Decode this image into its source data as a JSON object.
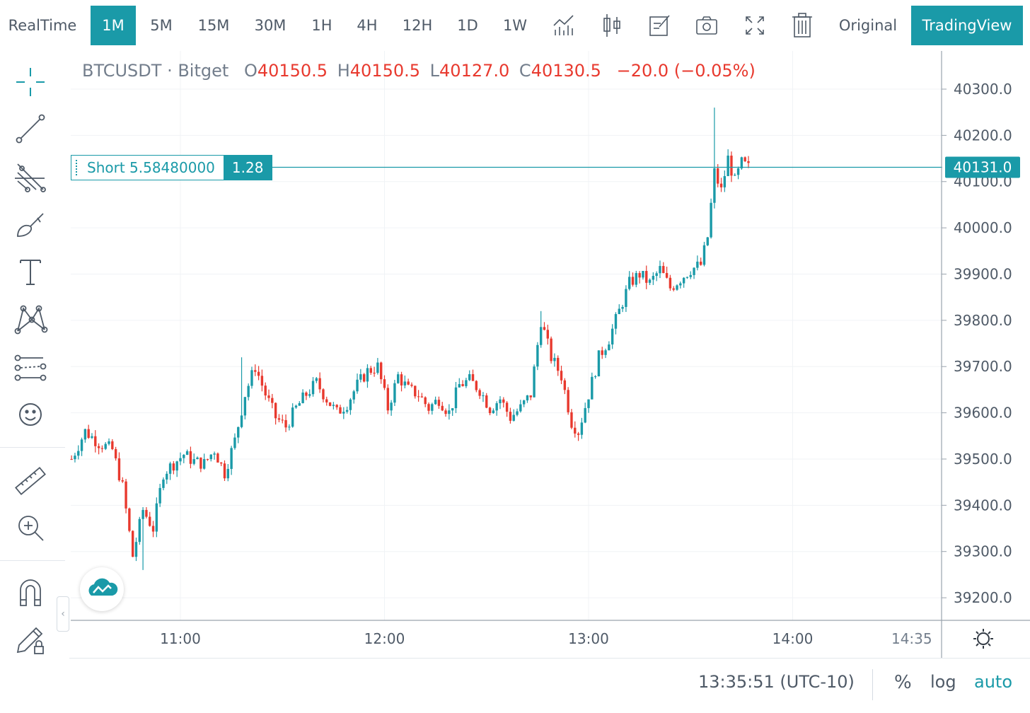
{
  "toolbar": {
    "intervals": [
      "RealTime",
      "1M",
      "5M",
      "15M",
      "30M",
      "1H",
      "4H",
      "12H",
      "1D",
      "1W"
    ],
    "active_interval": "1M",
    "original_label": "Original",
    "tradingview_label": "TradingView",
    "icons": [
      "indicators-icon",
      "candle-style-icon",
      "notes-icon",
      "snapshot-icon",
      "fullscreen-icon",
      "trash-icon"
    ]
  },
  "left_tools": [
    "crosshair-icon",
    "trend-line-icon",
    "fib-icon",
    "brush-icon",
    "text-icon",
    "pattern-icon",
    "prediction-icon",
    "emoji-icon",
    "ruler-icon",
    "zoom-in-icon",
    "magnet-icon",
    "lock-drawing-icon",
    "unlock-icon"
  ],
  "legend": {
    "symbol": "BTCUSDT",
    "separator": "·",
    "exchange": "Bitget",
    "o_label": "O",
    "o": "40150.5",
    "h_label": "H",
    "h": "40150.5",
    "l_label": "L",
    "l": "40127.0",
    "c_label": "C",
    "c": "40130.5",
    "change": "−20.0 (−0.05%)"
  },
  "order": {
    "label": "Short 5.58480000",
    "qty": "1.28",
    "price": 40131.0
  },
  "price_axis": {
    "labels": [
      "40300.0",
      "40200.0",
      "40100.0",
      "40000.0",
      "39900.0",
      "39800.0",
      "39700.0",
      "39600.0",
      "39500.0",
      "39400.0",
      "39300.0",
      "39200.0"
    ],
    "current": "40131.0"
  },
  "time_axis": {
    "labels": [
      "11:00",
      "12:00",
      "13:00",
      "14:00",
      "14:35"
    ]
  },
  "bottom": {
    "clock": "13:35:51 (UTC-10)",
    "percent": "%",
    "log": "log",
    "auto": "auto"
  },
  "colors": {
    "up": "#1a9aa8",
    "down": "#e8392e",
    "accent": "#1a9aa8"
  },
  "chart_data": {
    "type": "candlestick",
    "symbol": "BTCUSDT",
    "interval": "1M",
    "ylim": [
      39160,
      40350
    ],
    "time_range": [
      "10:32",
      "14:35"
    ],
    "candles": []
  }
}
